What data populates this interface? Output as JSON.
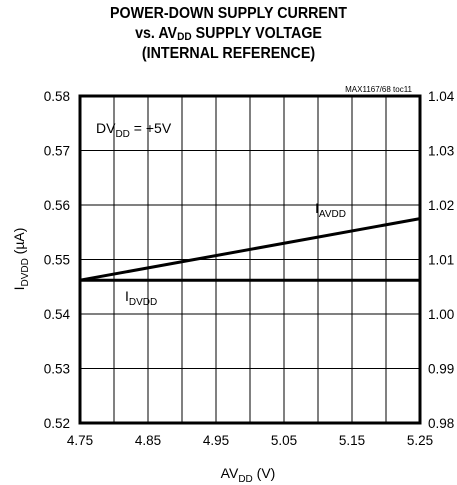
{
  "chart_data": {
    "type": "line",
    "title_parts": {
      "line1": "POWER-DOWN SUPPLY CURRENT",
      "line2_pre": "vs. AV",
      "line2_sub": "DD",
      "line2_post": " SUPPLY VOLTAGE",
      "line3": "(INTERNAL REFERENCE)"
    },
    "doc_id": "MAX1167/68 toc11",
    "xlabel": {
      "main": "AV",
      "sub": "DD",
      "post": " (V)"
    },
    "ylabel": {
      "main": "I",
      "sub": "DVDD",
      "post": " (µA)"
    },
    "xlim": [
      4.75,
      5.25
    ],
    "ylim": [
      0.52,
      0.58
    ],
    "y2lim": [
      0.98,
      1.04
    ],
    "x_ticks": [
      "4.75",
      "4.85",
      "4.95",
      "5.05",
      "5.15",
      "5.25"
    ],
    "y_ticks": [
      "0.52",
      "0.53",
      "0.54",
      "0.55",
      "0.56",
      "0.57",
      "0.58"
    ],
    "y2_ticks": [
      "0.98",
      "0.99",
      "1.00",
      "1.01",
      "1.02",
      "1.03",
      "1.04"
    ],
    "grid": true,
    "condition": {
      "main": "DV",
      "sub": "DD",
      "post": " = +5V"
    },
    "series": [
      {
        "name": "IAVDD",
        "label_main": "I",
        "label_sub": "AVDD",
        "axis": "right",
        "x": [
          4.75,
          5.25
        ],
        "y": [
          1.0062,
          1.0175
        ]
      },
      {
        "name": "IDVDD",
        "label_main": "I",
        "label_sub": "DVDD",
        "axis": "left",
        "x": [
          4.75,
          5.25
        ],
        "y": [
          0.5462,
          0.5462
        ]
      }
    ]
  }
}
